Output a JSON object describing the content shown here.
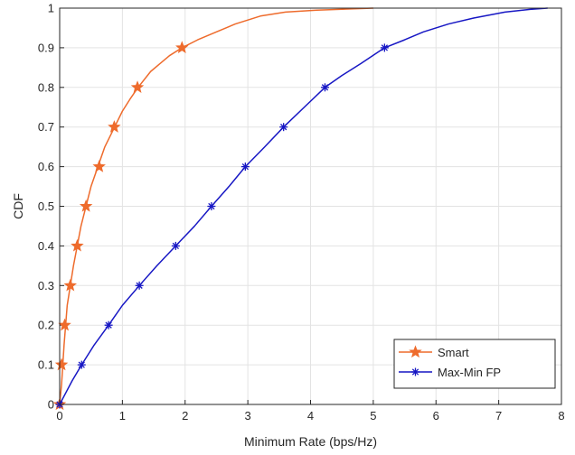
{
  "chart_data": {
    "type": "line",
    "title": "",
    "xlabel": "Minimum Rate (bps/Hz)",
    "ylabel": "CDF",
    "xlim": [
      0,
      8
    ],
    "ylim": [
      0,
      1
    ],
    "xticks": [
      "0",
      "1",
      "2",
      "3",
      "4",
      "5",
      "6",
      "7",
      "8"
    ],
    "yticks": [
      "0",
      "0.1",
      "0.2",
      "0.3",
      "0.4",
      "0.5",
      "0.6",
      "0.7",
      "0.8",
      "0.9",
      "1"
    ],
    "grid": true,
    "legend_position": "bottom-right",
    "series": [
      {
        "name": "Smart",
        "color": "#ee6b2c",
        "marker": "star",
        "curve": [
          [
            0,
            0
          ],
          [
            0.03,
            0.05
          ],
          [
            0.07,
            0.15
          ],
          [
            0.12,
            0.25
          ],
          [
            0.22,
            0.35
          ],
          [
            0.34,
            0.45
          ],
          [
            0.5,
            0.55
          ],
          [
            0.72,
            0.65
          ],
          [
            1.0,
            0.74
          ],
          [
            1.12,
            0.77
          ],
          [
            1.25,
            0.8
          ],
          [
            1.45,
            0.84
          ],
          [
            1.6,
            0.86
          ],
          [
            1.75,
            0.88
          ],
          [
            1.95,
            0.9
          ],
          [
            2.2,
            0.92
          ],
          [
            2.5,
            0.94
          ],
          [
            2.8,
            0.96
          ],
          [
            3.2,
            0.98
          ],
          [
            3.6,
            0.99
          ],
          [
            4.1,
            0.995
          ],
          [
            5.0,
            1.0
          ]
        ],
        "markers": [
          [
            0,
            0
          ],
          [
            0.03,
            0.1
          ],
          [
            0.08,
            0.2
          ],
          [
            0.17,
            0.3
          ],
          [
            0.28,
            0.4
          ],
          [
            0.42,
            0.5
          ],
          [
            0.63,
            0.6
          ],
          [
            0.87,
            0.7
          ],
          [
            1.24,
            0.8
          ],
          [
            1.95,
            0.9
          ]
        ]
      },
      {
        "name": "Max-Min FP",
        "color": "#1717c4",
        "marker": "asterisk",
        "curve": [
          [
            0,
            0
          ],
          [
            0.1,
            0.03
          ],
          [
            0.2,
            0.06
          ],
          [
            0.35,
            0.1
          ],
          [
            0.55,
            0.15
          ],
          [
            0.78,
            0.2
          ],
          [
            1.0,
            0.25
          ],
          [
            1.27,
            0.3
          ],
          [
            1.55,
            0.35
          ],
          [
            1.85,
            0.4
          ],
          [
            2.15,
            0.45
          ],
          [
            2.42,
            0.5
          ],
          [
            2.7,
            0.55
          ],
          [
            2.96,
            0.6
          ],
          [
            3.27,
            0.65
          ],
          [
            3.57,
            0.7
          ],
          [
            3.9,
            0.75
          ],
          [
            4.23,
            0.8
          ],
          [
            4.5,
            0.83
          ],
          [
            4.8,
            0.86
          ],
          [
            5.18,
            0.9
          ],
          [
            5.5,
            0.92
          ],
          [
            5.8,
            0.94
          ],
          [
            6.2,
            0.96
          ],
          [
            6.6,
            0.975
          ],
          [
            7.1,
            0.99
          ],
          [
            7.5,
            0.997
          ],
          [
            7.78,
            1.0
          ]
        ],
        "markers": [
          [
            0,
            0
          ],
          [
            0.35,
            0.1
          ],
          [
            0.78,
            0.2
          ],
          [
            1.27,
            0.3
          ],
          [
            1.85,
            0.4
          ],
          [
            2.42,
            0.5
          ],
          [
            2.96,
            0.6
          ],
          [
            3.57,
            0.7
          ],
          [
            4.23,
            0.8
          ],
          [
            5.18,
            0.9
          ]
        ]
      }
    ]
  }
}
